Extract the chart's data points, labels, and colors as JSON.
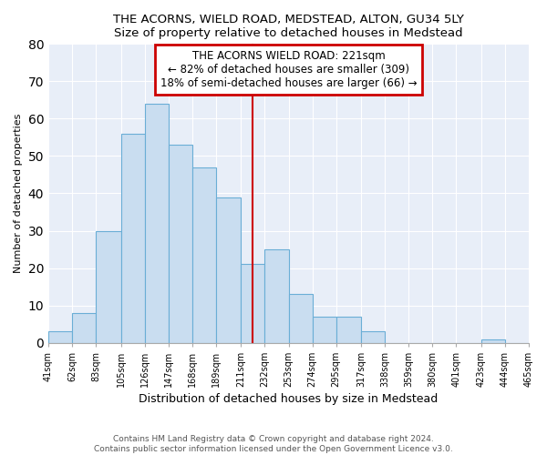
{
  "title": "THE ACORNS, WIELD ROAD, MEDSTEAD, ALTON, GU34 5LY",
  "subtitle": "Size of property relative to detached houses in Medstead",
  "xlabel": "Distribution of detached houses by size in Medstead",
  "ylabel": "Number of detached properties",
  "bar_values": [
    3,
    8,
    30,
    56,
    64,
    53,
    47,
    39,
    21,
    25,
    13,
    7,
    7,
    3,
    0,
    0,
    0,
    0,
    1,
    0
  ],
  "bin_labels": [
    "41sqm",
    "62sqm",
    "83sqm",
    "105sqm",
    "126sqm",
    "147sqm",
    "168sqm",
    "189sqm",
    "211sqm",
    "232sqm",
    "253sqm",
    "274sqm",
    "295sqm",
    "317sqm",
    "338sqm",
    "359sqm",
    "380sqm",
    "401sqm",
    "423sqm",
    "444sqm",
    "465sqm"
  ],
  "bar_color": "#c9ddf0",
  "bar_edge_color": "#6aaed6",
  "vline_color": "#cc0000",
  "annotation_title": "THE ACORNS WIELD ROAD: 221sqm",
  "annotation_line1": "← 82% of detached houses are smaller (309)",
  "annotation_line2": "18% of semi-detached houses are larger (66) →",
  "annotation_box_color": "#ffffff",
  "annotation_box_edge": "#cc0000",
  "ylim": [
    0,
    80
  ],
  "yticks": [
    0,
    10,
    20,
    30,
    40,
    50,
    60,
    70,
    80
  ],
  "footer_line1": "Contains HM Land Registry data © Crown copyright and database right 2024.",
  "footer_line2": "Contains public sector information licensed under the Open Government Licence v3.0.",
  "bg_color": "#e8eef8",
  "fig_bg_color": "#ffffff",
  "bin_edges": [
    41,
    62,
    83,
    105,
    126,
    147,
    168,
    189,
    211,
    232,
    253,
    274,
    295,
    317,
    338,
    359,
    380,
    401,
    423,
    444,
    465
  ],
  "vline_x": 221
}
